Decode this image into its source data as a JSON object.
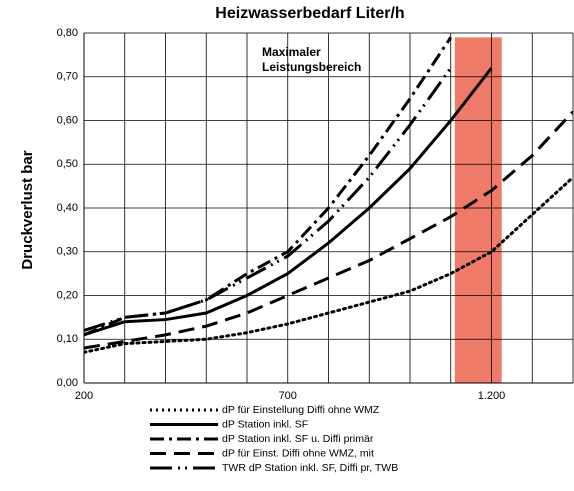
{
  "chart_data": {
    "type": "line",
    "title": "Heizwasserbedarf Liter/h",
    "ylabel": "Druckverlust bar",
    "annotation": [
      "Maximaler",
      "Leistungsbereich"
    ],
    "x": [
      200,
      300,
      400,
      500,
      600,
      700,
      800,
      900,
      1000,
      1100,
      1200,
      1300,
      1400
    ],
    "series": [
      {
        "name": "dP für Einstellung Diffi ohne WMZ",
        "color": "#000000",
        "dash": "2 4",
        "values": [
          0.07,
          0.09,
          0.095,
          0.1,
          0.115,
          0.135,
          0.16,
          0.185,
          0.21,
          0.25,
          0.3,
          0.385,
          0.47
        ]
      },
      {
        "name": "dP Station inkl. SF",
        "color": "#000000",
        "dash": "none",
        "values": [
          0.11,
          0.14,
          0.145,
          0.16,
          0.2,
          0.25,
          0.32,
          0.4,
          0.49,
          0.6,
          0.72,
          null,
          null
        ]
      },
      {
        "name": "dP Station inkl. SF u. Diffi primär",
        "color": "#000000",
        "dash": "14 5 3 5",
        "values": [
          0.11,
          0.15,
          0.16,
          0.19,
          0.25,
          0.3,
          0.4,
          0.52,
          0.65,
          0.79,
          null,
          null,
          null
        ]
      },
      {
        "name": "dP für Einst. Diffi ohne WMZ, mit",
        "color": "#000000",
        "dash": "16 8",
        "values": [
          0.08,
          0.095,
          0.11,
          0.13,
          0.16,
          0.2,
          0.24,
          0.28,
          0.33,
          0.38,
          0.44,
          0.52,
          0.62
        ]
      },
      {
        "name": "TWR dP Station inkl. SF, Diffi pr, TWB",
        "color": "#000000",
        "dash": "22 6 2 5 2 6",
        "values": [
          0.12,
          0.15,
          0.16,
          0.19,
          0.24,
          0.29,
          0.37,
          0.47,
          0.59,
          0.72,
          null,
          null,
          null
        ]
      }
    ],
    "band": {
      "x": [
        1110,
        1225
      ],
      "top": 0.79,
      "color": "#ef7a68"
    },
    "xlim": [
      200,
      1400
    ],
    "xticks": [
      200,
      700,
      {
        "value": 1200,
        "label": "1.200"
      }
    ],
    "xgrid": [
      200,
      300,
      400,
      500,
      600,
      700,
      800,
      900,
      1000,
      1100,
      1200,
      1300,
      1400
    ],
    "ylim": [
      0,
      0.8
    ],
    "yticks": [
      {
        "value": 0,
        "label": "0,00"
      },
      {
        "value": 0.1,
        "label": "0,10"
      },
      {
        "value": 0.2,
        "label": "0,20"
      },
      {
        "value": 0.3,
        "label": "0,30"
      },
      {
        "value": 0.4,
        "label": "0,40"
      },
      {
        "value": 0.5,
        "label": "0,50"
      },
      {
        "value": 0.6,
        "label": "0,60"
      },
      {
        "value": 0.7,
        "label": "0,70"
      },
      {
        "value": 0.8,
        "label": "0,80"
      }
    ],
    "grid": true
  }
}
